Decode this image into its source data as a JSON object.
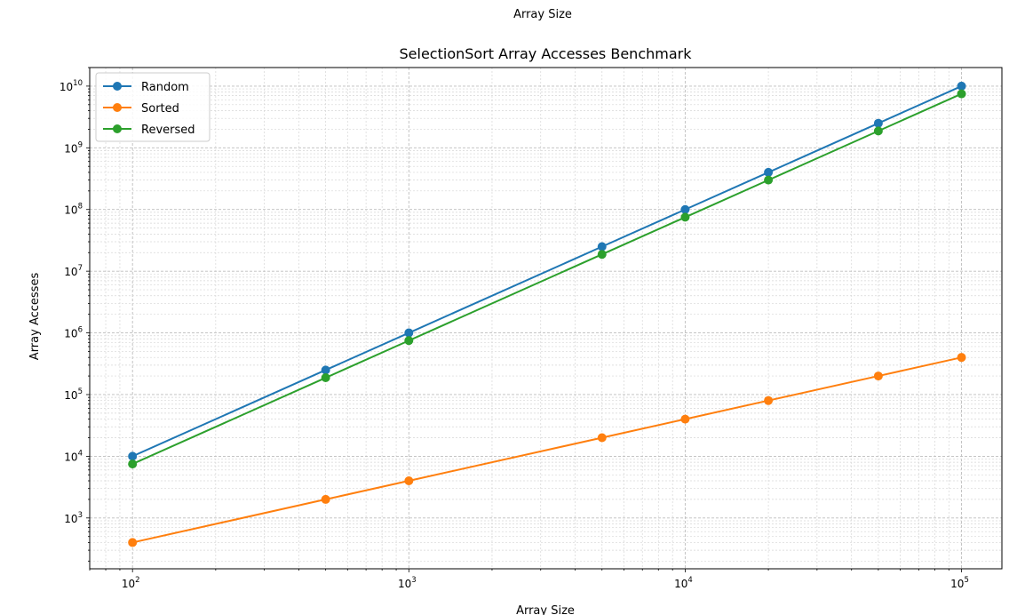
{
  "figure": {
    "top_label": "Array Size"
  },
  "chart_data": {
    "type": "line",
    "title": "SelectionSort Array Accesses Benchmark",
    "xlabel": "Array Size",
    "ylabel": "Array Accesses",
    "xscale": "log",
    "yscale": "log",
    "xlim": [
      70,
      140000
    ],
    "ylim": [
      150,
      20000000000
    ],
    "x_ticks": [
      {
        "value": 100,
        "base": "10",
        "exp": "2"
      },
      {
        "value": 1000,
        "base": "10",
        "exp": "3"
      },
      {
        "value": 10000,
        "base": "10",
        "exp": "4"
      },
      {
        "value": 100000,
        "base": "10",
        "exp": "5"
      }
    ],
    "y_ticks": [
      {
        "value": 1000,
        "base": "10",
        "exp": "3"
      },
      {
        "value": 10000,
        "base": "10",
        "exp": "4"
      },
      {
        "value": 100000,
        "base": "10",
        "exp": "5"
      },
      {
        "value": 1000000,
        "base": "10",
        "exp": "6"
      },
      {
        "value": 10000000,
        "base": "10",
        "exp": "7"
      },
      {
        "value": 100000000,
        "base": "10",
        "exp": "8"
      },
      {
        "value": 1000000000,
        "base": "10",
        "exp": "9"
      },
      {
        "value": 10000000000,
        "base": "10",
        "exp": "10"
      }
    ],
    "grid": true,
    "grid_minor": true,
    "legend_position": "top-left",
    "x": [
      100,
      500,
      1000,
      5000,
      10000,
      20000,
      50000,
      100000
    ],
    "series": [
      {
        "name": "Random",
        "color": "#1f77b4",
        "values": [
          10000,
          250000,
          1000000,
          25000000,
          100000000,
          400000000,
          2500000000,
          10000000000
        ]
      },
      {
        "name": "Sorted",
        "color": "#ff7f0e",
        "values": [
          400,
          2000,
          4000,
          20000,
          40000,
          80000,
          200000,
          400000
        ]
      },
      {
        "name": "Reversed",
        "color": "#2ca02c",
        "values": [
          7500,
          187500,
          750000,
          18750000,
          75000000,
          300000000,
          1875000000,
          7500000000
        ]
      }
    ]
  }
}
